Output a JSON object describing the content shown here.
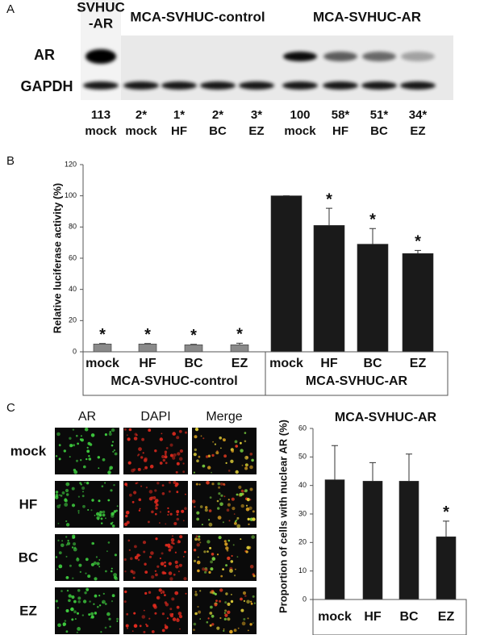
{
  "panel_a": {
    "panel_label": "A",
    "group_headers": [
      [
        "SVHUC",
        "-AR"
      ],
      [
        "MCA-SVHUC-control"
      ],
      [
        "MCA-SVHUC-AR"
      ]
    ],
    "rows": [
      "AR",
      "GAPDH"
    ],
    "quantities": [
      "113",
      "2*",
      "1*",
      "2*",
      "3*",
      "100",
      "58*",
      "51*",
      "34*"
    ],
    "treatments": [
      "mock",
      "mock",
      "HF",
      "BC",
      "EZ",
      "mock",
      "HF",
      "BC",
      "EZ"
    ]
  },
  "panel_c_images": {
    "panel_label": "C",
    "columns": [
      "AR",
      "DAPI",
      "Merge"
    ],
    "rows": [
      "mock",
      "HF",
      "BC",
      "EZ"
    ]
  },
  "chart_data": [
    {
      "type": "bar",
      "panel_label": "B",
      "y_label": "Relative luciferase activity (%)",
      "categories": [
        "mock",
        "HF",
        "BC",
        "EZ",
        "mock",
        "HF",
        "BC",
        "EZ"
      ],
      "groups": [
        "MCA-SVHUC-control",
        "MCA-SVHUC-AR"
      ],
      "values": [
        5,
        5,
        4.5,
        4.5,
        100,
        81,
        69,
        63
      ],
      "errors": [
        0.3,
        0.3,
        0.3,
        1,
        0,
        11,
        10,
        2
      ],
      "annotations": [
        "*",
        "*",
        "*",
        "*",
        null,
        "*",
        "*",
        "*"
      ],
      "colors": [
        "#8a8a8a",
        "#8a8a8a",
        "#8a8a8a",
        "#8a8a8a",
        "#1a1a1a",
        "#1a1a1a",
        "#1a1a1a",
        "#1a1a1a"
      ],
      "ylim": [
        0,
        120
      ],
      "yticks": [
        0,
        20,
        40,
        60,
        80,
        100,
        120
      ]
    },
    {
      "type": "bar",
      "title": "MCA-SVHUC-AR",
      "y_label": "Proportion of cells with nuclear AR (%)",
      "categories": [
        "mock",
        "HF",
        "BC",
        "EZ"
      ],
      "values": [
        42,
        41.5,
        41.5,
        22
      ],
      "errors": [
        12,
        6.5,
        9.5,
        5.5
      ],
      "annotations": [
        null,
        null,
        null,
        "*"
      ],
      "colors": [
        "#1a1a1a",
        "#1a1a1a",
        "#1a1a1a",
        "#1a1a1a"
      ],
      "ylim": [
        0,
        60
      ],
      "yticks": [
        0,
        10,
        20,
        30,
        40,
        50,
        60
      ]
    }
  ]
}
